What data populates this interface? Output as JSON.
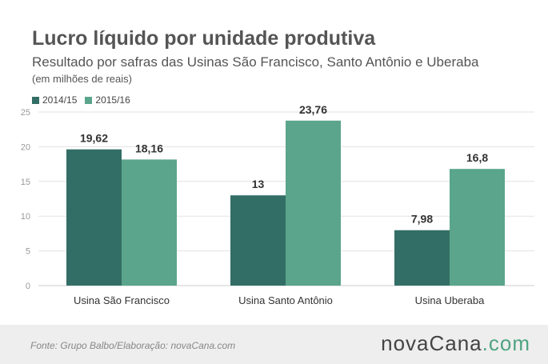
{
  "header": {
    "title": "Lucro líquido por unidade produtiva",
    "subtitle": "Resultado por safras das Usinas São Francisco, Santo Antônio e Uberaba",
    "note": "(em milhões de reais)"
  },
  "footer": {
    "source": "Fonte:  Grupo  Balbo/Elaboração:  novaCana.com",
    "brand_main": "novaCana",
    "brand_suffix": ".com"
  },
  "colors": {
    "series_2014": "#336e66",
    "series_2015": "#5aa58b",
    "grid": "#e3e3e3",
    "axis_text": "#999999",
    "label_text": "#333333",
    "brand_accent": "#4fa383"
  },
  "chart_data": {
    "type": "bar",
    "categories": [
      "Usina São Francisco",
      "Usina Santo Antônio",
      "Usina Uberaba"
    ],
    "series": [
      {
        "name": "2014/15",
        "values": [
          19.62,
          13,
          7.98
        ],
        "labels": [
          "19,62",
          "13",
          "7,98"
        ]
      },
      {
        "name": "2015/16",
        "values": [
          18.16,
          23.76,
          16.8
        ],
        "labels": [
          "18,16",
          "23,76",
          "16,8"
        ]
      }
    ],
    "ylim": [
      0,
      25
    ],
    "yticks": [
      0,
      5,
      10,
      15,
      20,
      25
    ],
    "grid": true,
    "legend": "top-left"
  }
}
